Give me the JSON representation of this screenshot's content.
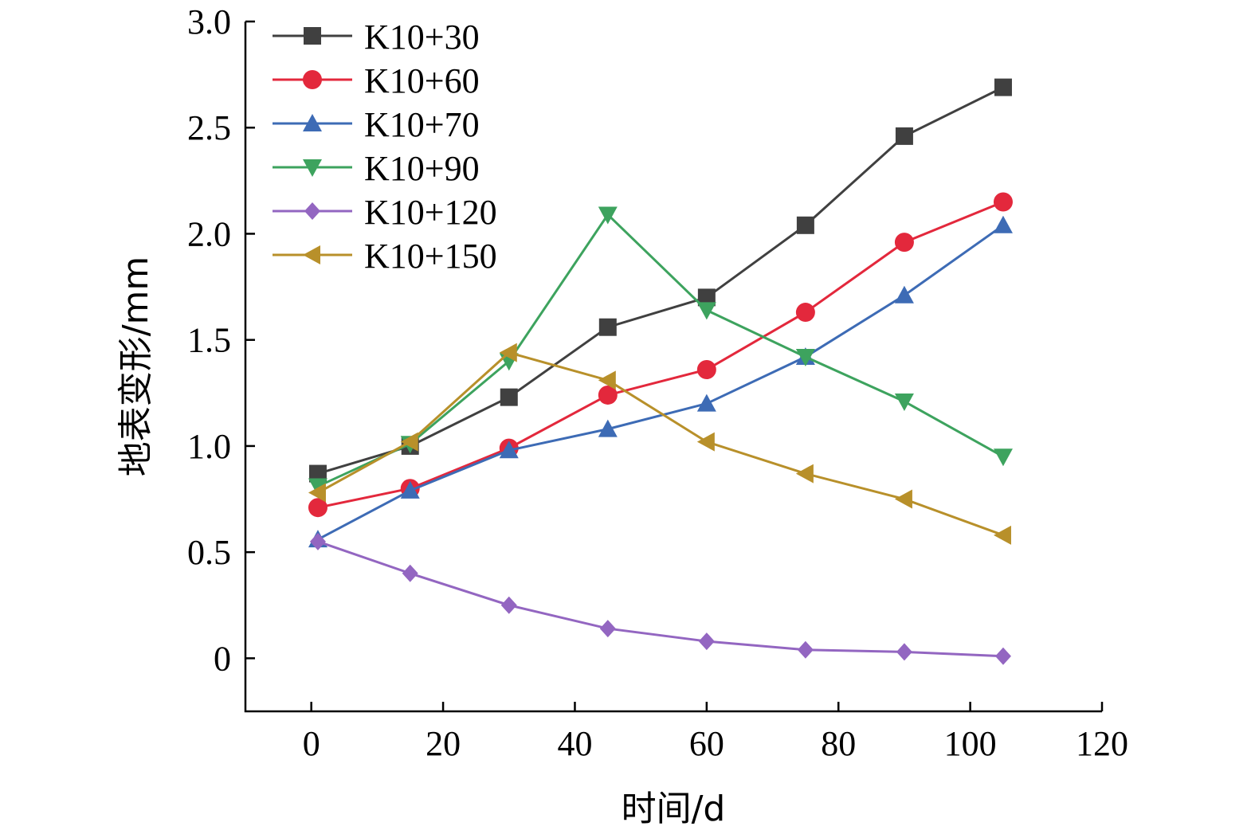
{
  "chart_data": {
    "type": "line",
    "xlabel": "时间/d",
    "ylabel": "地表变形/mm",
    "xlim": [
      -10,
      120
    ],
    "ylim": [
      -0.25,
      3.0
    ],
    "xticks": [
      0,
      20,
      40,
      60,
      80,
      100,
      120
    ],
    "xtick_labels": [
      "0",
      "20",
      "40",
      "60",
      "80",
      "100",
      "120"
    ],
    "yticks": [
      0,
      0.5,
      1.0,
      1.5,
      2.0,
      2.5,
      3.0
    ],
    "ytick_labels": [
      "0",
      "0.5",
      "1.0",
      "1.5",
      "2.0",
      "2.5",
      "3.0"
    ],
    "grid": false,
    "legend_position": "top-left",
    "x": [
      1,
      15,
      30,
      45,
      60,
      75,
      90,
      105
    ],
    "series": [
      {
        "name": "K10+30",
        "color": "#404040",
        "marker": "square",
        "values": [
          0.87,
          1.0,
          1.23,
          1.56,
          1.7,
          2.04,
          2.46,
          2.69
        ]
      },
      {
        "name": "K10+60",
        "color": "#e3283c",
        "marker": "circle",
        "values": [
          0.71,
          0.8,
          0.99,
          1.24,
          1.36,
          1.63,
          1.96,
          2.15
        ]
      },
      {
        "name": "K10+70",
        "color": "#3d6bb5",
        "marker": "triangle-up",
        "values": [
          0.56,
          0.79,
          0.98,
          1.08,
          1.2,
          1.42,
          1.71,
          2.04
        ]
      },
      {
        "name": "K10+90",
        "color": "#3da35e",
        "marker": "triangle-down",
        "values": [
          0.81,
          1.01,
          1.4,
          2.09,
          1.64,
          1.42,
          1.21,
          0.95
        ]
      },
      {
        "name": "K10+120",
        "color": "#9366c1",
        "marker": "diamond",
        "values": [
          0.55,
          0.4,
          0.25,
          0.14,
          0.08,
          0.04,
          0.03,
          0.01
        ]
      },
      {
        "name": "K10+150",
        "color": "#b8902a",
        "marker": "triangle-left",
        "values": [
          0.78,
          1.02,
          1.44,
          1.31,
          1.02,
          0.87,
          0.75,
          0.58
        ]
      }
    ]
  }
}
